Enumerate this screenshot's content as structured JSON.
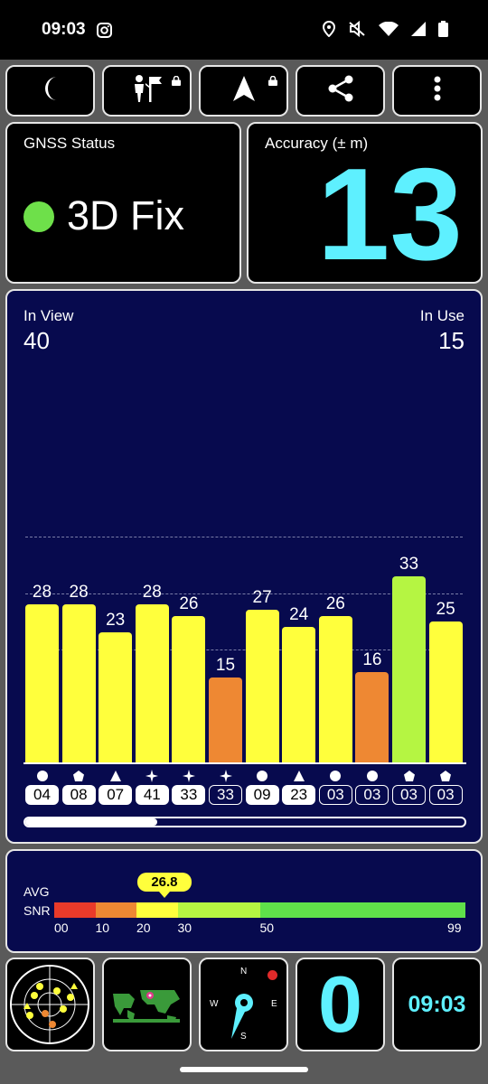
{
  "status_bar": {
    "time": "09:03",
    "icons": [
      "instagram-icon",
      "location-icon",
      "mute-icon",
      "wifi-icon",
      "signal-icon",
      "battery-icon"
    ]
  },
  "toolbar": {
    "buttons": [
      "night-mode-icon",
      "person-flag-icon",
      "navigation-arrow-icon",
      "share-icon",
      "more-vert-icon"
    ]
  },
  "gnss": {
    "label": "GNSS Status",
    "status": "3D Fix",
    "status_color": "#6ee04a"
  },
  "accuracy": {
    "label": "Accuracy (± m)",
    "value": "13",
    "value_color": "#5ef0ff"
  },
  "sky": {
    "in_view_label": "In View",
    "in_view": "40",
    "in_use_label": "In Use",
    "in_use": "15",
    "scroll_fraction": 0.3
  },
  "chart_data": {
    "type": "bar",
    "categories": [
      "04",
      "08",
      "07",
      "41",
      "33",
      "33",
      "09",
      "23",
      "03",
      "03",
      "03",
      "03"
    ],
    "values": [
      28,
      28,
      23,
      28,
      26,
      15,
      27,
      24,
      26,
      16,
      33,
      25
    ],
    "constellations": [
      "circle",
      "pentagon",
      "triangle",
      "star",
      "star",
      "star",
      "circle",
      "triangle",
      "circle",
      "circle",
      "pentagon",
      "pentagon"
    ],
    "in_use": [
      true,
      true,
      true,
      true,
      true,
      false,
      true,
      true,
      false,
      false,
      false,
      false
    ],
    "colors": [
      "#ffff3c",
      "#ffff3c",
      "#ffff3c",
      "#ffff3c",
      "#ffff3c",
      "#ee8833",
      "#ffff3c",
      "#ffff3c",
      "#ffff3c",
      "#ee8833",
      "#b5f542",
      "#ffff3c"
    ],
    "ylim": [
      0,
      40
    ]
  },
  "snr": {
    "label_top": "AVG",
    "label_bottom": "SNR",
    "avg": "26.8",
    "avg_value": 26.8,
    "ticks": [
      "00",
      "10",
      "20",
      "30",
      "50",
      "99"
    ]
  },
  "bottom": {
    "fix_count": "0",
    "clock": "09:03",
    "compass": {
      "n": "N",
      "s": "S",
      "e": "E",
      "w": "W"
    }
  }
}
